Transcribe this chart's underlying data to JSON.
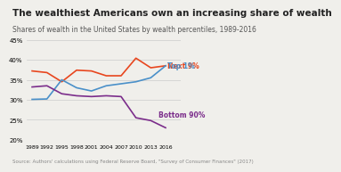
{
  "title": "The wealthiest Americans own an increasing share of wealth",
  "subtitle": "Shares of wealth in the United States by wealth percentiles, 1989-2016",
  "source": "Source: Authors' calculations using Federal Reserve Board, \"Survey of Consumer Finances\" (2017)",
  "years": [
    1989,
    1992,
    1995,
    1998,
    2001,
    2004,
    2007,
    2010,
    2013,
    2016
  ],
  "next9": [
    37.2,
    36.8,
    34.5,
    37.4,
    37.2,
    36.0,
    36.0,
    40.4,
    38.0,
    38.5
  ],
  "top1": [
    30.1,
    30.2,
    35.0,
    33.0,
    32.2,
    33.5,
    34.0,
    34.5,
    35.5,
    38.5
  ],
  "bottom90": [
    33.2,
    33.5,
    31.5,
    31.0,
    30.8,
    31.0,
    30.8,
    25.5,
    24.8,
    23.0
  ],
  "next9_color": "#e8461e",
  "top1_color": "#4a90c9",
  "bottom90_color": "#7b2d8b",
  "ylim": [
    20,
    45
  ],
  "yticks": [
    20,
    25,
    30,
    35,
    40,
    45
  ],
  "bg_color": "#f0efeb",
  "grid_color": "#cccccc",
  "title_fontsize": 7.5,
  "subtitle_fontsize": 5.5,
  "source_fontsize": 4.0,
  "label_fontsize": 5.5
}
